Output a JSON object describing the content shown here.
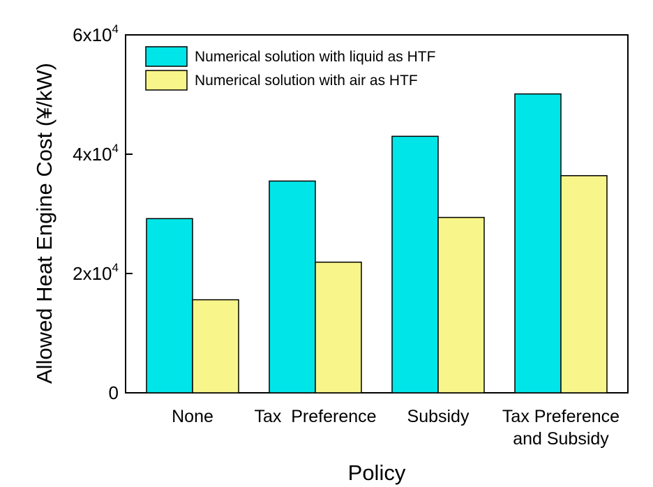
{
  "chart_data": {
    "type": "bar",
    "xlabel": "Policy",
    "ylabel": "Allowed Heat Engine Cost (¥/kW)",
    "categories": [
      [
        "None"
      ],
      [
        "Tax  Preference"
      ],
      [
        "Subsidy"
      ],
      [
        "Tax Preference",
        "and Subsidy"
      ]
    ],
    "series": [
      {
        "name": "Numerical solution with liquid as HTF",
        "color": "#00e5e8",
        "values": [
          29200,
          35500,
          43000,
          50100
        ]
      },
      {
        "name": "Numerical solution with air as HTF",
        "color": "#f8f58a",
        "values": [
          15600,
          21900,
          29400,
          36400
        ]
      }
    ],
    "ylim": [
      0,
      60000
    ],
    "yticks": [
      {
        "value": 0,
        "base": "0",
        "exp": ""
      },
      {
        "value": 20000,
        "base": "2x10",
        "exp": "4"
      },
      {
        "value": 40000,
        "base": "4x10",
        "exp": "4"
      },
      {
        "value": 60000,
        "base": "6x10",
        "exp": "4"
      }
    ],
    "legend_position": "top-left",
    "grid": false
  }
}
